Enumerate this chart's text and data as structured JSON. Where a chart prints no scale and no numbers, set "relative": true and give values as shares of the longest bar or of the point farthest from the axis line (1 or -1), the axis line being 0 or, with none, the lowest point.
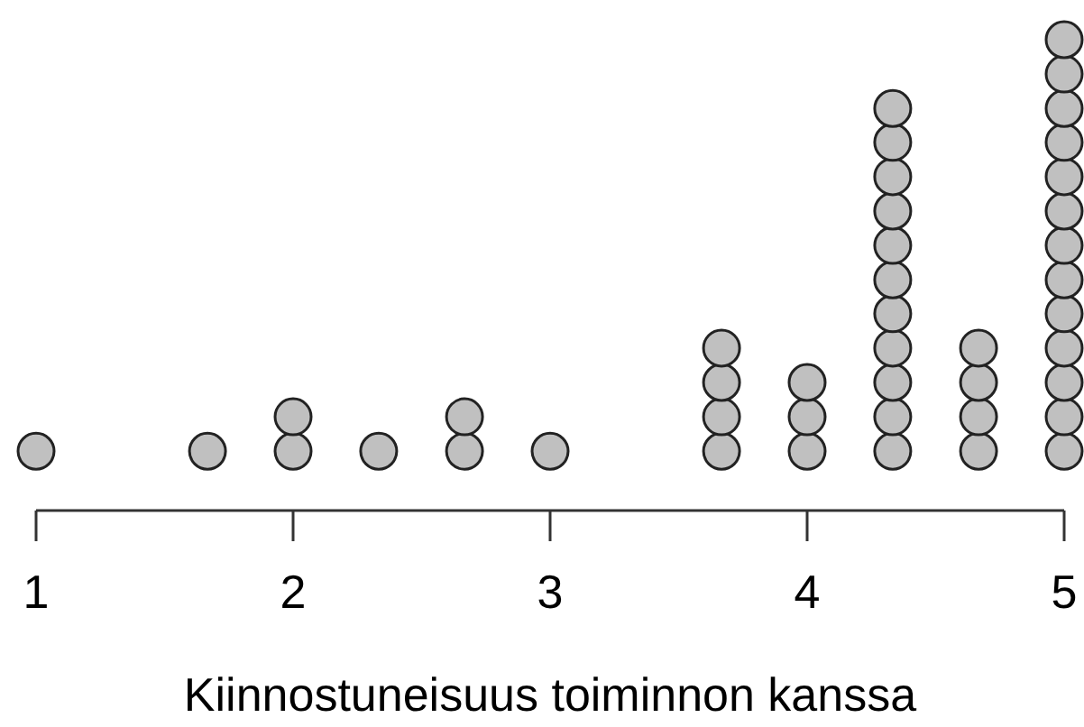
{
  "chart_data": {
    "type": "scatter",
    "relative": true,
    "xlabel": "Kiinnostuneisuus toiminnon kanssa",
    "xlim": [
      1,
      5
    ],
    "xticks": [
      1,
      2,
      3,
      4,
      5
    ],
    "marker": "circle",
    "tick_labels": "x",
    "grid": false,
    "series": [
      {
        "color": "#c0c0c0",
        "x": [
          1,
          1.667,
          2,
          2,
          2.333,
          2.667,
          2.667,
          3,
          3.667,
          3.667,
          3.667,
          3.667,
          4,
          4,
          4,
          4.333,
          4.333,
          4.333,
          4.333,
          4.333,
          4.333,
          4.333,
          4.333,
          4.333,
          4.333,
          4.333,
          4.667,
          4.667,
          4.667,
          4.667,
          5,
          5,
          5,
          5,
          5,
          5,
          5,
          5,
          5,
          5,
          5,
          5,
          5
        ],
        "values": [
          0.126,
          0.126,
          0.126,
          0.199,
          0.126,
          0.126,
          0.199,
          0.126,
          0.126,
          0.199,
          0.272,
          0.345,
          0.126,
          0.199,
          0.272,
          0.126,
          0.199,
          0.272,
          0.345,
          0.418,
          0.49,
          0.563,
          0.636,
          0.709,
          0.782,
          0.854,
          0.126,
          0.199,
          0.272,
          0.345,
          0.126,
          0.199,
          0.272,
          0.345,
          0.418,
          0.49,
          0.563,
          0.636,
          0.709,
          0.782,
          0.854,
          0.927,
          1
        ]
      }
    ]
  }
}
